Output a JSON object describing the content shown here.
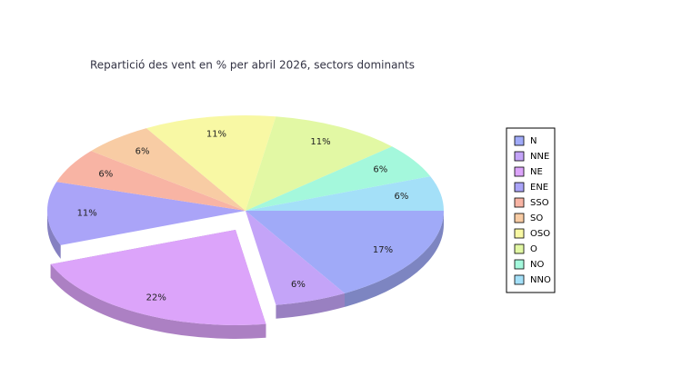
{
  "chart_data": {
    "type": "pie",
    "title": "Repartició des vent en % per abril 2026, sectors dominants",
    "categories": [
      "N",
      "NNE",
      "NE",
      "ENE",
      "SSO",
      "SO",
      "OSO",
      "O",
      "NO",
      "NNO"
    ],
    "values": [
      17,
      6,
      22,
      11,
      6,
      6,
      11,
      11,
      6,
      6
    ],
    "value_labels": [
      "17%",
      "6%",
      "22%",
      "11%",
      "6%",
      "6%",
      "11%",
      "11%",
      "6%",
      "6%"
    ],
    "colors": [
      "#a0aaf8",
      "#c4a4f8",
      "#dca4fa",
      "#aaa4f8",
      "#f8b4a4",
      "#f8cca4",
      "#f8f8a4",
      "#e2f8a4",
      "#a4f8dc",
      "#a4e0f8"
    ],
    "exploded": 2,
    "legend": "right"
  }
}
